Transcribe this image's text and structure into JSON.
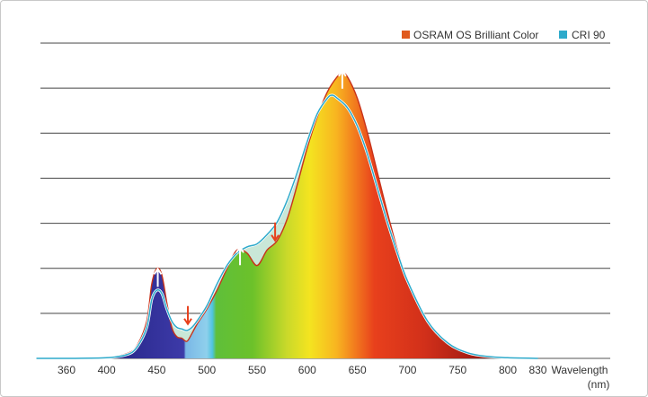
{
  "chart_data": {
    "type": "area",
    "title": "",
    "xlabel": "Wavelength",
    "xlabel_unit": "(nm)",
    "ylabel": "",
    "xlim": [
      330,
      830
    ],
    "ylim": [
      0,
      1.0
    ],
    "grid": true,
    "legend_position": "top-right",
    "x_ticks": [
      {
        "label": "360",
        "value": 360
      },
      {
        "label": "400",
        "value": 400
      },
      {
        "label": "450",
        "value": 450
      },
      {
        "label": "500",
        "value": 500
      },
      {
        "label": "550",
        "value": 550
      },
      {
        "label": "600",
        "value": 600
      },
      {
        "label": "650",
        "value": 650
      },
      {
        "label": "700",
        "value": 700
      },
      {
        "label": "750",
        "value": 750
      },
      {
        "label": "800",
        "value": 800
      },
      {
        "label": "830",
        "value": 830
      }
    ],
    "series": [
      {
        "name": "OSRAM OS Brilliant Color",
        "color": "#e05a1e",
        "x": [
          330,
          360,
          400,
          420,
          430,
          440,
          445,
          450,
          455,
          460,
          465,
          470,
          475,
          480,
          485,
          490,
          500,
          510,
          520,
          530,
          540,
          550,
          560,
          570,
          580,
          590,
          600,
          610,
          620,
          630,
          635,
          640,
          650,
          660,
          670,
          680,
          690,
          700,
          720,
          740,
          760,
          780,
          800,
          830
        ],
        "y": [
          0,
          0,
          0.002,
          0.015,
          0.04,
          0.12,
          0.24,
          0.29,
          0.27,
          0.18,
          0.1,
          0.07,
          0.065,
          0.055,
          0.08,
          0.11,
          0.16,
          0.22,
          0.29,
          0.35,
          0.34,
          0.3,
          0.35,
          0.38,
          0.45,
          0.56,
          0.68,
          0.78,
          0.86,
          0.91,
          0.92,
          0.91,
          0.84,
          0.73,
          0.6,
          0.47,
          0.35,
          0.25,
          0.12,
          0.05,
          0.018,
          0.006,
          0.002,
          0
        ]
      },
      {
        "name": "CRI 90",
        "color": "#2eaacb",
        "x": [
          330,
          360,
          400,
          420,
          430,
          440,
          445,
          450,
          455,
          460,
          465,
          470,
          475,
          480,
          485,
          490,
          500,
          510,
          520,
          530,
          540,
          550,
          560,
          570,
          580,
          590,
          600,
          610,
          620,
          625,
          630,
          640,
          650,
          660,
          670,
          680,
          690,
          700,
          720,
          740,
          760,
          780,
          800,
          830
        ],
        "y": [
          0,
          0,
          0.002,
          0.012,
          0.035,
          0.1,
          0.19,
          0.22,
          0.21,
          0.16,
          0.12,
          0.1,
          0.095,
          0.09,
          0.1,
          0.12,
          0.17,
          0.24,
          0.3,
          0.34,
          0.36,
          0.37,
          0.4,
          0.44,
          0.51,
          0.6,
          0.7,
          0.79,
          0.84,
          0.85,
          0.84,
          0.81,
          0.75,
          0.66,
          0.55,
          0.44,
          0.34,
          0.25,
          0.12,
          0.05,
          0.018,
          0.006,
          0.002,
          0
        ]
      }
    ],
    "annotations": [
      {
        "type": "arrow-up",
        "color": "#ffffff",
        "x": 451,
        "y": 0.26
      },
      {
        "type": "arrow-down",
        "color": "#e8401c",
        "x": 481,
        "y": 0.14
      },
      {
        "type": "arrow-up",
        "color": "#ffffff",
        "x": 533,
        "y": 0.33
      },
      {
        "type": "arrow-down",
        "color": "#e8401c",
        "x": 568,
        "y": 0.41
      },
      {
        "type": "arrow-up",
        "color": "#ffffff",
        "x": 635,
        "y": 0.9
      }
    ]
  },
  "legend": {
    "items": [
      {
        "label": "OSRAM OS Brilliant Color",
        "color": "#e05a1e"
      },
      {
        "label": "CRI 90",
        "color": "#2eaacb"
      }
    ]
  },
  "axis": {
    "xlabel": "Wavelength",
    "xlabel_unit": "(nm)"
  }
}
